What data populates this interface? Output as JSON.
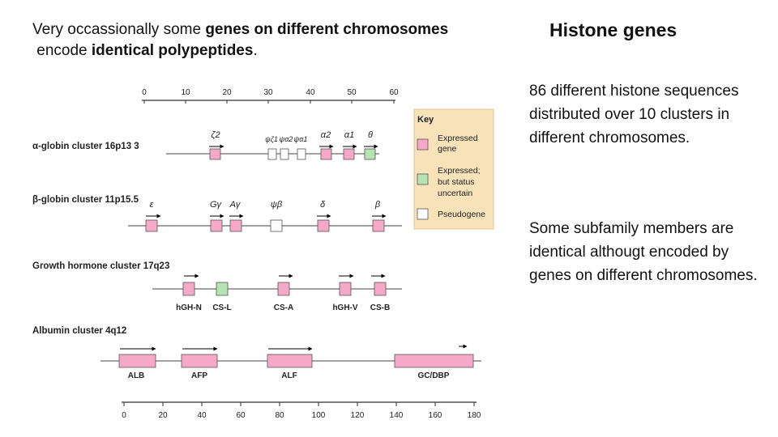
{
  "intro": {
    "part1": "Very occassionally some ",
    "bold1": "genes on different chromosomes",
    "part2": "encode ",
    "bold2": "identical polypeptides",
    "part3": "."
  },
  "right": {
    "title": "Histone genes",
    "para1": "86 different histone sequences distributed over 10 clusters in different chromosomes.",
    "para2": "Some subfamily members are identical althougt encoded by genes on different chromosomes."
  },
  "diagram": {
    "top_axis_ticks": [
      "0",
      "10",
      "20",
      "30",
      "40",
      "50",
      "60"
    ],
    "bottom_axis_ticks": [
      "0",
      "20",
      "40",
      "60",
      "80",
      "100",
      "120",
      "140",
      "160",
      "180"
    ],
    "key": {
      "title": "Key",
      "expressed": "Expressed gene",
      "uncertain": "Expressed; but status uncertain",
      "pseudogene": "Pseudogene"
    },
    "colors": {
      "expressed": "#f5a9c6",
      "uncertain": "#b5e3b1",
      "pseudogene": "#ffffff",
      "key_bg": "#f8e2b9"
    },
    "clusters": [
      {
        "label": "α-globin cluster 16p13 3",
        "genes": [
          "ζ2",
          "ψζ1",
          "ψα2",
          "ψα1",
          "α2",
          "α1",
          "θ"
        ]
      },
      {
        "label": "β-globin cluster 11p15.5",
        "genes": [
          "ε",
          "Gγ",
          "Aγ",
          "ψβ",
          "δ",
          "β"
        ]
      },
      {
        "label": "Growth hormone cluster 17q23",
        "genes": [
          "hGH-N",
          "CS-L",
          "CS-A",
          "hGH-V",
          "CS-B"
        ]
      },
      {
        "label": "Albumin cluster 4q12",
        "genes": [
          "ALB",
          "AFP",
          "ALF",
          "GC/DBP"
        ]
      }
    ]
  }
}
